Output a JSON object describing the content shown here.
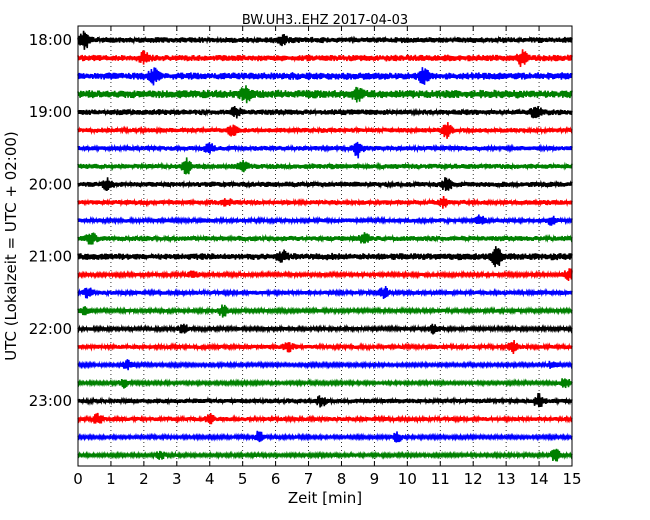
{
  "chart_data": {
    "type": "line",
    "title": "BW.UH3..EHZ 2017-04-03",
    "xlabel": "Zeit  [min]",
    "ylabel": "UTC (Lokalzeit = UTC + 02:00)",
    "xlim": [
      0,
      15
    ],
    "x_ticks": [
      "0",
      "1",
      "2",
      "3",
      "4",
      "5",
      "6",
      "7",
      "8",
      "9",
      "10",
      "11",
      "12",
      "13",
      "14",
      "15"
    ],
    "y_ticks": [
      "18:00",
      "19:00",
      "20:00",
      "21:00",
      "22:00",
      "23:00"
    ],
    "grid": "vertical dotted",
    "trace_colors": [
      "#000000",
      "#ff0000",
      "#0000ff",
      "#008000"
    ],
    "traces": [
      {
        "start": "18:00",
        "amp": 0.55,
        "events": [
          [
            0.2,
            1.6
          ],
          [
            6.2,
            0.8
          ]
        ]
      },
      {
        "start": "18:15",
        "amp": 0.6,
        "events": [
          [
            13.5,
            1.4
          ],
          [
            2.0,
            0.9
          ]
        ]
      },
      {
        "start": "18:30",
        "amp": 0.7,
        "events": [
          [
            2.3,
            1.3
          ],
          [
            10.5,
            1.5
          ]
        ]
      },
      {
        "start": "18:45",
        "amp": 0.8,
        "events": [
          [
            5.1,
            1.3
          ],
          [
            8.5,
            1.1
          ]
        ]
      },
      {
        "start": "19:00",
        "amp": 0.55,
        "events": [
          [
            13.9,
            1.4
          ],
          [
            4.8,
            0.9
          ]
        ]
      },
      {
        "start": "19:15",
        "amp": 0.45,
        "events": [
          [
            11.2,
            1.3
          ],
          [
            4.7,
            0.9
          ]
        ]
      },
      {
        "start": "19:30",
        "amp": 0.45,
        "events": [
          [
            8.5,
            1.6
          ],
          [
            4.0,
            0.8
          ]
        ]
      },
      {
        "start": "19:45",
        "amp": 0.5,
        "events": [
          [
            3.3,
            1.3
          ],
          [
            5.0,
            0.9
          ]
        ]
      },
      {
        "start": "20:00",
        "amp": 0.5,
        "events": [
          [
            11.2,
            1.2
          ],
          [
            0.9,
            1.0
          ]
        ]
      },
      {
        "start": "20:15",
        "amp": 0.45,
        "events": [
          [
            11.1,
            0.9
          ],
          [
            4.5,
            0.8
          ]
        ]
      },
      {
        "start": "20:30",
        "amp": 0.4,
        "events": [
          [
            12.2,
            0.9
          ],
          [
            14.4,
            0.9
          ]
        ]
      },
      {
        "start": "20:45",
        "amp": 0.5,
        "events": [
          [
            0.4,
            1.0
          ],
          [
            8.7,
            1.0
          ]
        ]
      },
      {
        "start": "21:00",
        "amp": 0.65,
        "events": [
          [
            12.7,
            1.9
          ],
          [
            6.2,
            0.8
          ]
        ]
      },
      {
        "start": "21:15",
        "amp": 0.35,
        "events": [
          [
            14.9,
            1.1
          ],
          [
            3.5,
            0.8
          ]
        ]
      },
      {
        "start": "21:30",
        "amp": 0.4,
        "events": [
          [
            0.3,
            1.0
          ],
          [
            9.3,
            1.2
          ]
        ]
      },
      {
        "start": "21:45",
        "amp": 0.35,
        "events": [
          [
            4.4,
            1.2
          ],
          [
            0.2,
            0.8
          ]
        ]
      },
      {
        "start": "22:00",
        "amp": 0.35,
        "events": [
          [
            3.2,
            0.9
          ],
          [
            10.8,
            0.9
          ]
        ]
      },
      {
        "start": "22:15",
        "amp": 0.4,
        "events": [
          [
            13.2,
            1.1
          ],
          [
            6.4,
            0.8
          ]
        ]
      },
      {
        "start": "22:30",
        "amp": 0.3,
        "events": [
          [
            1.5,
            0.9
          ],
          [
            14.4,
            0.8
          ]
        ]
      },
      {
        "start": "22:45",
        "amp": 0.3,
        "events": [
          [
            1.4,
            0.9
          ],
          [
            14.8,
            1.0
          ]
        ]
      },
      {
        "start": "23:00",
        "amp": 0.45,
        "events": [
          [
            14.0,
            1.3
          ],
          [
            7.4,
            1.0
          ]
        ]
      },
      {
        "start": "23:15",
        "amp": 0.4,
        "events": [
          [
            0.6,
            0.9
          ],
          [
            4.0,
            0.9
          ]
        ]
      },
      {
        "start": "23:30",
        "amp": 0.3,
        "events": [
          [
            5.5,
            1.2
          ],
          [
            9.7,
            0.9
          ]
        ]
      },
      {
        "start": "23:45",
        "amp": 0.3,
        "events": [
          [
            14.5,
            1.3
          ],
          [
            2.5,
            0.8
          ]
        ]
      }
    ]
  }
}
